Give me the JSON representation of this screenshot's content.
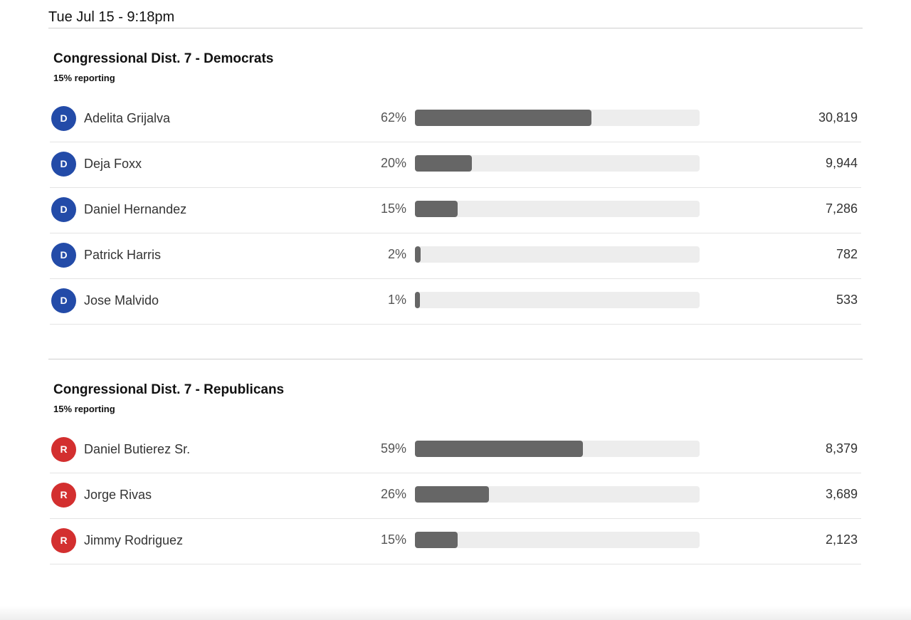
{
  "header": {
    "timestamp": "Tue Jul 15 - 9:18pm"
  },
  "races": [
    {
      "title": "Congressional Dist. 7 - Democrats",
      "reporting": "15% reporting",
      "candidates": [
        {
          "party": "D",
          "name": "Adelita Grijalva",
          "pct_label": "62%",
          "pct": 62,
          "votes": "30,819"
        },
        {
          "party": "D",
          "name": "Deja Foxx",
          "pct_label": "20%",
          "pct": 20,
          "votes": "9,944"
        },
        {
          "party": "D",
          "name": "Daniel Hernandez",
          "pct_label": "15%",
          "pct": 15,
          "votes": "7,286"
        },
        {
          "party": "D",
          "name": "Patrick Harris",
          "pct_label": "2%",
          "pct": 2,
          "votes": "782"
        },
        {
          "party": "D",
          "name": "Jose Malvido",
          "pct_label": "1%",
          "pct": 1,
          "votes": "533"
        }
      ]
    },
    {
      "title": "Congressional Dist. 7 - Republicans",
      "reporting": "15% reporting",
      "candidates": [
        {
          "party": "R",
          "name": "Daniel Butierez Sr.",
          "pct_label": "59%",
          "pct": 59,
          "votes": "8,379"
        },
        {
          "party": "R",
          "name": "Jorge Rivas",
          "pct_label": "26%",
          "pct": 26,
          "votes": "3,689"
        },
        {
          "party": "R",
          "name": "Jimmy Rodriguez",
          "pct_label": "15%",
          "pct": 15,
          "votes": "2,123"
        }
      ]
    }
  ],
  "colors": {
    "democrat": "#234ba8",
    "republican": "#d32f2f",
    "bar_fill": "#666666",
    "bar_track": "#ededed"
  }
}
